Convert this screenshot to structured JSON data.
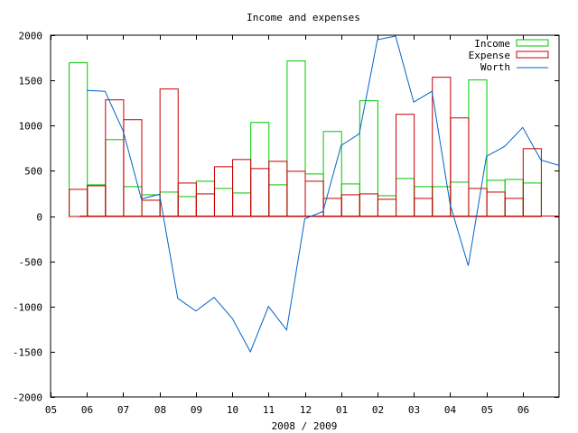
{
  "chart_data": {
    "type": "bar",
    "title": "Income and expenses",
    "xlabel": "2008 / 2009",
    "ylabel": "",
    "ylim": [
      -2000,
      2000
    ],
    "yticks": [
      -2000,
      -1500,
      -1000,
      -500,
      0,
      500,
      1000,
      1500,
      2000
    ],
    "xlim": [
      0,
      28
    ],
    "xticks": [
      {
        "pos": 0,
        "label": "05"
      },
      {
        "pos": 2,
        "label": "06"
      },
      {
        "pos": 4,
        "label": "07"
      },
      {
        "pos": 6,
        "label": "08"
      },
      {
        "pos": 8,
        "label": "09"
      },
      {
        "pos": 10,
        "label": "10"
      },
      {
        "pos": 12,
        "label": "11"
      },
      {
        "pos": 14,
        "label": "12"
      },
      {
        "pos": 16,
        "label": "01"
      },
      {
        "pos": 18,
        "label": "02"
      },
      {
        "pos": 20,
        "label": "03"
      },
      {
        "pos": 22,
        "label": "04"
      },
      {
        "pos": 24,
        "label": "05"
      },
      {
        "pos": 26,
        "label": "06"
      }
    ],
    "legend": "top-right",
    "grid": false,
    "series": [
      {
        "name": "Income",
        "type": "bar",
        "color": "#00c800",
        "x": [
          1.5,
          2.5,
          3.5,
          4.5,
          5.5,
          6.5,
          7.5,
          8.5,
          9.5,
          10.5,
          11.5,
          12.5,
          13.5,
          14.5,
          15.5,
          16.5,
          17.5,
          18.5,
          19.5,
          20.5,
          21.5,
          22.5,
          23.5,
          24.5,
          25.5,
          26.5
        ],
        "values": [
          1700,
          350,
          850,
          330,
          240,
          270,
          220,
          390,
          310,
          260,
          1040,
          350,
          1720,
          470,
          940,
          360,
          1280,
          230,
          420,
          330,
          330,
          380,
          1510,
          400,
          410,
          370
        ]
      },
      {
        "name": "Expense",
        "type": "bar",
        "color": "#c80000",
        "x": [
          1.5,
          2.5,
          3.5,
          4.5,
          5.5,
          6.5,
          7.5,
          8.5,
          9.5,
          10.5,
          11.5,
          12.5,
          13.5,
          14.5,
          15.5,
          16.5,
          17.5,
          18.5,
          19.5,
          20.5,
          21.5,
          22.5,
          23.5,
          24.5,
          25.5,
          26.5
        ],
        "values": [
          300,
          340,
          1290,
          1070,
          180,
          1410,
          370,
          250,
          550,
          630,
          530,
          610,
          500,
          390,
          200,
          240,
          250,
          190,
          1130,
          200,
          1540,
          1090,
          310,
          270,
          200,
          750
        ]
      },
      {
        "name": "Worth",
        "type": "line",
        "color": "#0064c8",
        "x": [
          2,
          3,
          4,
          5,
          6,
          7,
          8,
          9,
          10,
          11,
          12,
          13,
          14,
          15,
          16,
          17,
          18,
          19,
          20,
          21,
          22,
          23,
          24,
          25,
          26,
          27,
          28
        ],
        "values": [
          1390,
          1380,
          940,
          190,
          240,
          -910,
          -1050,
          -900,
          -1130,
          -1500,
          -1000,
          -1260,
          -30,
          50,
          780,
          910,
          1950,
          1990,
          1260,
          1380,
          130,
          -550,
          660,
          770,
          980,
          620,
          560
        ]
      }
    ]
  }
}
